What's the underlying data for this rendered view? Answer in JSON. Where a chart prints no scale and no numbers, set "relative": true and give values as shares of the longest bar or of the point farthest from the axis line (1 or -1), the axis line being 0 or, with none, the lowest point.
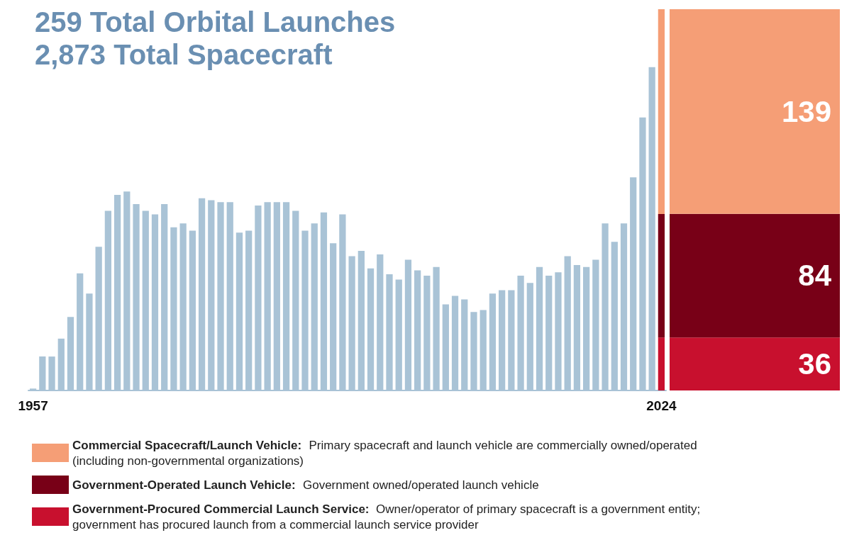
{
  "chart_data": [
    {
      "type": "bar",
      "title": "259 Total Orbital Launches",
      "subtitle": "2,873 Total Spacecraft",
      "relative": true,
      "stacked": true,
      "legend": "bottom",
      "categories": [
        "1957",
        null,
        null,
        null,
        null,
        null,
        null,
        null,
        null,
        null,
        null,
        null,
        null,
        null,
        null,
        null,
        null,
        null,
        null,
        null,
        null,
        null,
        null,
        null,
        null,
        null,
        null,
        null,
        null,
        null,
        null,
        null,
        null,
        null,
        null,
        null,
        null,
        null,
        null,
        null,
        null,
        null,
        null,
        null,
        null,
        null,
        null,
        null,
        null,
        null,
        null,
        null,
        null,
        null,
        null,
        null,
        null,
        null,
        null,
        null,
        null,
        null,
        null,
        null,
        null,
        null,
        null,
        "2024"
      ],
      "series": [
        {
          "color": "#a9c3d6",
          "values": [
            0.005,
            0.089,
            0.089,
            0.136,
            0.193,
            0.307,
            0.254,
            0.377,
            0.471,
            0.513,
            0.522,
            0.489,
            0.471,
            0.462,
            0.489,
            0.428,
            0.438,
            0.419,
            0.504,
            0.499,
            0.494,
            0.494,
            0.414,
            0.419,
            0.485,
            0.494,
            0.494,
            0.494,
            0.471,
            0.419,
            0.438,
            0.467,
            0.386,
            0.462,
            0.352,
            0.366,
            0.32,
            0.357,
            0.305,
            0.291,
            0.343,
            0.315,
            0.301,
            0.324,
            0.226,
            0.248,
            0.239,
            0.206,
            0.211,
            0.254,
            0.263,
            0.263,
            0.301,
            0.282,
            0.324,
            0.301,
            0.31,
            0.352,
            0.329,
            0.324,
            0.343,
            0.438,
            0.39,
            0.438,
            0.559,
            0.716,
            0.848,
            null
          ]
        },
        {
          "name": "Government-Procured Commercial Launch Service: Owner/operator of primary spacecraft is a government entity; government has procured launch from a commercial launch service provider",
          "color": "#c8102e",
          "values": [
            null,
            null,
            null,
            null,
            null,
            null,
            null,
            null,
            null,
            null,
            null,
            null,
            null,
            null,
            null,
            null,
            null,
            null,
            null,
            null,
            null,
            null,
            null,
            null,
            null,
            null,
            null,
            null,
            null,
            null,
            null,
            null,
            null,
            null,
            null,
            null,
            null,
            null,
            null,
            null,
            null,
            null,
            null,
            null,
            null,
            null,
            null,
            null,
            null,
            null,
            null,
            null,
            null,
            null,
            null,
            null,
            null,
            null,
            null,
            null,
            null,
            null,
            null,
            null,
            null,
            null,
            null,
            0.139
          ]
        },
        {
          "name": "Government-Operated Launch Vehicle: Government owned/operated launch vehicle",
          "color": "#780017",
          "values": [
            null,
            null,
            null,
            null,
            null,
            null,
            null,
            null,
            null,
            null,
            null,
            null,
            null,
            null,
            null,
            null,
            null,
            null,
            null,
            null,
            null,
            null,
            null,
            null,
            null,
            null,
            null,
            null,
            null,
            null,
            null,
            null,
            null,
            null,
            null,
            null,
            null,
            null,
            null,
            null,
            null,
            null,
            null,
            null,
            null,
            null,
            null,
            null,
            null,
            null,
            null,
            null,
            null,
            null,
            null,
            null,
            null,
            null,
            null,
            null,
            null,
            null,
            null,
            null,
            null,
            null,
            null,
            0.324
          ]
        },
        {
          "name": "Commercial Spacecraft/Launch Vehicle: Primary spacecraft and launch vehicle are commercially owned/operated (including non-governmental organizations)",
          "color": "#f59e76",
          "values": [
            null,
            null,
            null,
            null,
            null,
            null,
            null,
            null,
            null,
            null,
            null,
            null,
            null,
            null,
            null,
            null,
            null,
            null,
            null,
            null,
            null,
            null,
            null,
            null,
            null,
            null,
            null,
            null,
            null,
            null,
            null,
            null,
            null,
            null,
            null,
            null,
            null,
            null,
            null,
            null,
            null,
            null,
            null,
            null,
            null,
            null,
            null,
            null,
            null,
            null,
            null,
            null,
            null,
            null,
            null,
            null,
            null,
            null,
            null,
            null,
            null,
            null,
            null,
            null,
            null,
            null,
            null,
            0.537
          ]
        }
      ]
    },
    {
      "type": "bar",
      "stacked": true,
      "data_labels": true,
      "categories": [
        null
      ],
      "series": [
        {
          "color": "#c8102e",
          "values": [
            36
          ]
        },
        {
          "color": "#780017",
          "values": [
            84
          ]
        },
        {
          "color": "#f59e76",
          "values": [
            139
          ]
        }
      ]
    }
  ]
}
